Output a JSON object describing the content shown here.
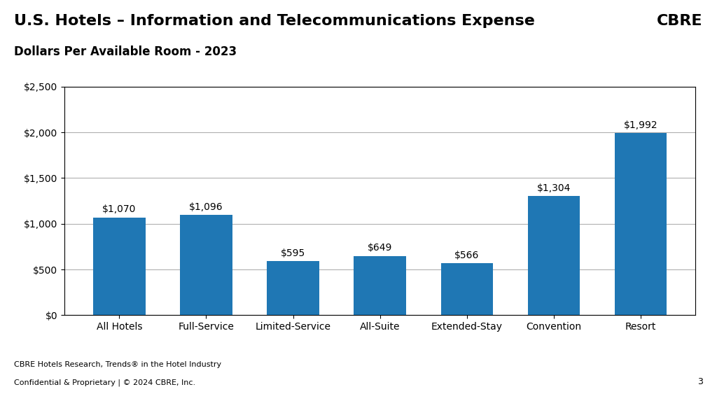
{
  "chart_data": {
    "type": "bar",
    "title": "U.S. Hotels – Information and Telecommunications Expense",
    "subtitle": "Dollars Per Available Room - 2023",
    "categories": [
      "All Hotels",
      "Full-Service",
      "Limited-Service",
      "All-Suite",
      "Extended-Stay",
      "Convention",
      "Resort"
    ],
    "values": [
      1070,
      1096,
      595,
      649,
      566,
      1304,
      1992
    ],
    "value_labels": [
      "$1,070",
      "$1,096",
      "$595",
      "$649",
      "$566",
      "$1,304",
      "$1,992"
    ],
    "data_labels": true,
    "ylim": [
      0,
      2500
    ],
    "yticks": [
      {
        "value": 0,
        "label": "$0"
      },
      {
        "value": 500,
        "label": "$500"
      },
      {
        "value": 1000,
        "label": "$1,000"
      },
      {
        "value": 1500,
        "label": "$1,500"
      },
      {
        "value": 2000,
        "label": "$2,000"
      },
      {
        "value": 2500,
        "label": "$2,500"
      }
    ],
    "grid": true,
    "annotations": [
      "CBRE",
      "CBRE Hotels Research, Trends® in the Hotel Industry",
      "Confidential & Proprietary | © 2024 CBRE, Inc.",
      "3"
    ]
  }
}
